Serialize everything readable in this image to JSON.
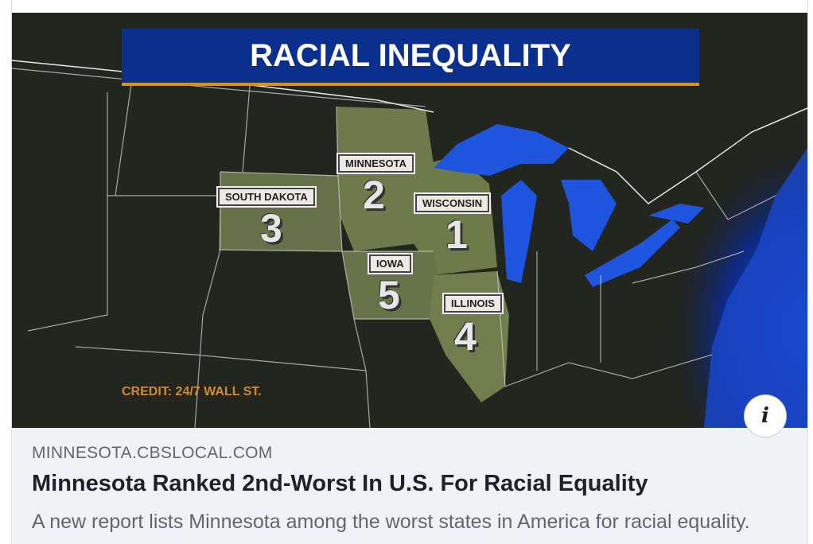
{
  "hero": {
    "banner_title": "RACIAL INEQUALITY",
    "credit": "CREDIT: 24/7 WALL ST.",
    "states": [
      {
        "name": "MINNESOTA",
        "rank": "2"
      },
      {
        "name": "SOUTH DAKOTA",
        "rank": "3"
      },
      {
        "name": "WISCONSIN",
        "rank": "1"
      },
      {
        "name": "IOWA",
        "rank": "5"
      },
      {
        "name": "ILLINOIS",
        "rank": "4"
      }
    ]
  },
  "link": {
    "domain": "MINNESOTA.CBSLOCAL.COM",
    "headline": "Minnesota Ranked 2nd-Worst In U.S. For Racial Equality",
    "description": "A new report lists Minnesota among the worst states in America for racial equality."
  },
  "info_button": {
    "icon": "info-icon",
    "glyph": "i"
  },
  "colors": {
    "banner_blue": "#0a2f8c",
    "banner_accent": "#d69321",
    "credit_orange": "#d38c2c",
    "highlight_land": "#6f7a4c",
    "water": "#1b4fd8"
  }
}
